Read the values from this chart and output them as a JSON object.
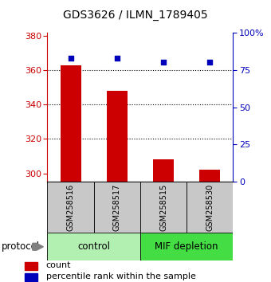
{
  "title": "GDS3626 / ILMN_1789405",
  "samples": [
    "GSM258516",
    "GSM258517",
    "GSM258515",
    "GSM258530"
  ],
  "counts": [
    363,
    348,
    308,
    302
  ],
  "percentile_ranks": [
    83,
    83,
    80,
    80
  ],
  "groups": [
    "control",
    "control",
    "MIF depletion",
    "MIF depletion"
  ],
  "control_color": "#B2F0B2",
  "mif_color": "#44DD44",
  "bar_color": "#CC0000",
  "dot_color": "#0000BB",
  "ylim_left": [
    295,
    382
  ],
  "ylim_right": [
    0,
    100
  ],
  "yticks_left": [
    300,
    320,
    340,
    360,
    380
  ],
  "yticks_right": [
    0,
    25,
    50,
    75,
    100
  ],
  "ytick_labels_right": [
    "0",
    "25",
    "50",
    "75",
    "100%"
  ],
  "grid_ticks": [
    320,
    340,
    360
  ],
  "left_tick_color": "#CC0000",
  "right_tick_color": "#0000BB",
  "bar_bottom": 295,
  "sample_box_color": "#C8C8C8",
  "protocol_label": "protocol",
  "legend_count_label": "count",
  "legend_percentile_label": "percentile rank within the sample"
}
